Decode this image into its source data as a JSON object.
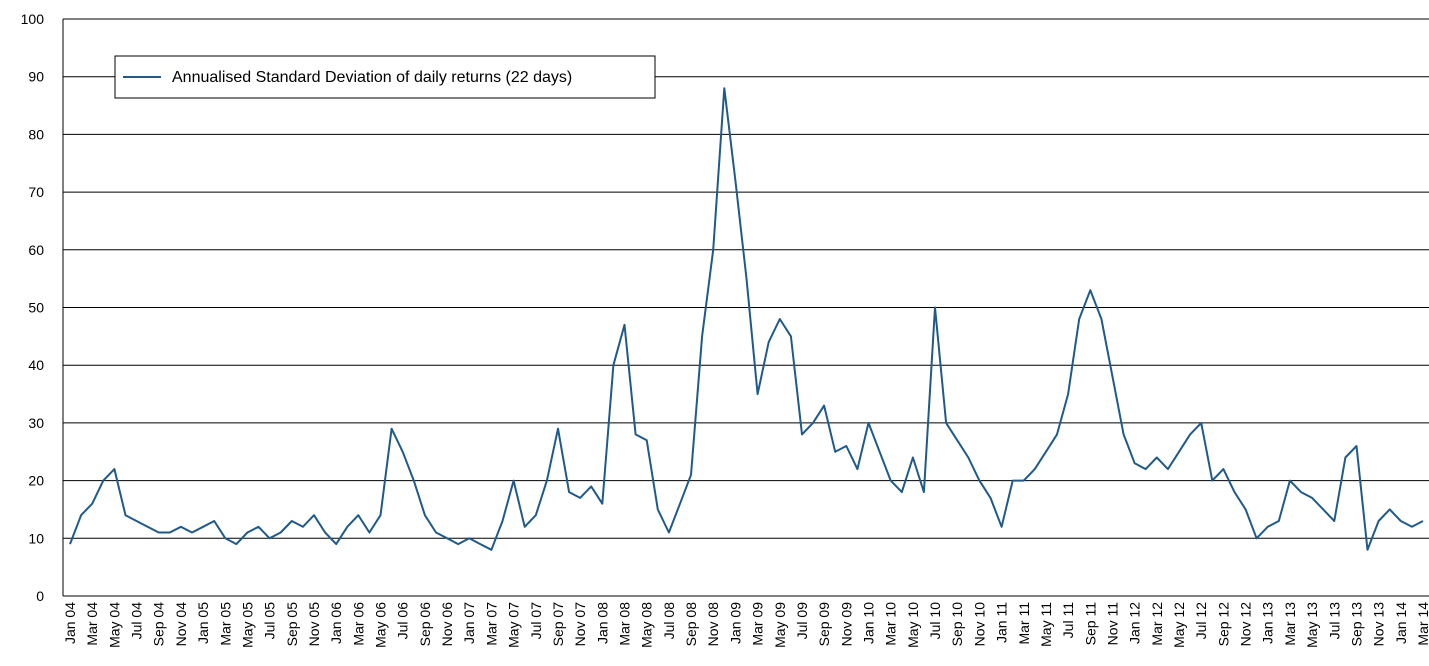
{
  "chart_data": {
    "type": "line",
    "categories": [
      "Jan 04",
      null,
      "Mar 04",
      null,
      "May 04",
      null,
      "Jul 04",
      null,
      "Sep 04",
      null,
      "Nov 04",
      null,
      "Jan 05",
      null,
      "Mar 05",
      null,
      "May 05",
      null,
      "Jul 05",
      null,
      "Sep 05",
      null,
      "Nov 05",
      null,
      "Jan 06",
      null,
      "Mar 06",
      null,
      "May 06",
      null,
      "Jul 06",
      null,
      "Sep 06",
      null,
      "Nov 06",
      null,
      "Jan 07",
      null,
      "Mar 07",
      null,
      "May 07",
      null,
      "Jul 07",
      null,
      "Sep 07",
      null,
      "Nov 07",
      null,
      "Jan 08",
      null,
      "Mar 08",
      null,
      "May 08",
      null,
      "Jul 08",
      null,
      "Sep 08",
      null,
      "Nov 08",
      null,
      "Jan 09",
      null,
      "Mar 09",
      null,
      "May 09",
      null,
      "Jul 09",
      null,
      "Sep 09",
      null,
      "Nov 09",
      null,
      "Jan 10",
      null,
      "Mar 10",
      null,
      "May 10",
      null,
      "Jul 10",
      null,
      "Sep 10",
      null,
      "Nov 10",
      null,
      "Jan 11",
      null,
      "Mar 11",
      null,
      "May 11",
      null,
      "Jul 11",
      null,
      "Sep 11",
      null,
      "Nov 11",
      null,
      "Jan 12",
      null,
      "Mar 12",
      null,
      "May 12",
      null,
      "Jul 12",
      null,
      "Sep 12",
      null,
      "Nov 12",
      null,
      "Jan 13",
      null,
      "Mar 13",
      null,
      "May 13",
      null,
      "Jul 13",
      null,
      "Sep 13",
      null,
      "Nov 13",
      null,
      "Jan 14",
      null,
      "Mar 14"
    ],
    "series": [
      {
        "name": "Annualised Standard Deviation of daily returns (22 days)",
        "color": "#1f5a8a",
        "values": [
          9,
          14,
          16,
          20,
          22,
          14,
          13,
          12,
          11,
          11,
          12,
          11,
          12,
          13,
          10,
          9,
          11,
          12,
          10,
          11,
          13,
          12,
          14,
          11,
          9,
          12,
          14,
          11,
          14,
          29,
          25,
          20,
          14,
          11,
          10,
          9,
          10,
          9,
          8,
          13,
          20,
          12,
          14,
          20,
          29,
          18,
          17,
          19,
          16,
          40,
          47,
          28,
          27,
          15,
          11,
          16,
          21,
          45,
          60,
          88,
          72,
          55,
          35,
          44,
          48,
          45,
          28,
          30,
          33,
          25,
          26,
          22,
          30,
          25,
          20,
          18,
          24,
          18,
          50,
          30,
          27,
          24,
          20,
          17,
          12,
          20,
          20,
          22,
          25,
          28,
          35,
          48,
          53,
          48,
          38,
          28,
          23,
          22,
          24,
          22,
          25,
          28,
          30,
          20,
          22,
          18,
          15,
          10,
          12,
          13,
          20,
          18,
          17,
          15,
          13,
          24,
          26,
          8,
          13,
          15,
          13,
          12,
          13
        ]
      }
    ],
    "ylim": [
      0,
      100
    ],
    "yticks": [
      0,
      10,
      20,
      30,
      40,
      50,
      60,
      70,
      80,
      90,
      100
    ],
    "grid": true
  }
}
